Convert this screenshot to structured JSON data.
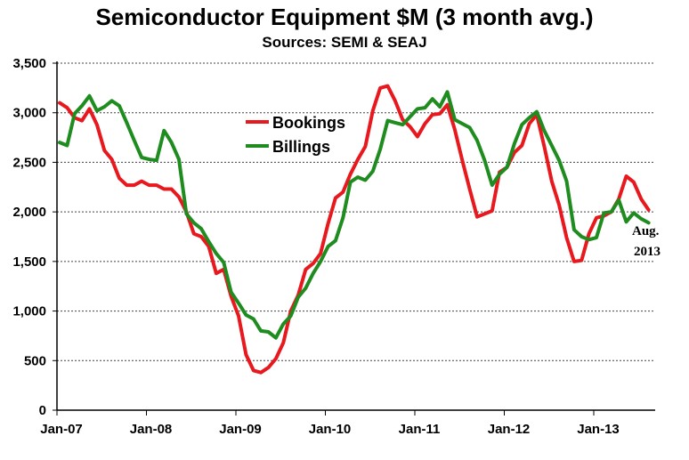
{
  "chart_data": {
    "type": "line",
    "title": "Semiconductor Equipment $M (3 month avg.)",
    "subtitle": "Sources: SEMI & SEAJ",
    "xlabel": "",
    "ylabel": "",
    "ylim": [
      0,
      3500
    ],
    "yticks": [
      0,
      500,
      1000,
      1500,
      2000,
      2500,
      3000,
      3500
    ],
    "ytick_labels": [
      "0",
      "500",
      "1,000",
      "1,500",
      "2,000",
      "2,500",
      "3,000",
      "3,500"
    ],
    "xticks": [
      "Jan-07",
      "Jan-08",
      "Jan-09",
      "Jan-10",
      "Jan-11",
      "Jan-12",
      "Jan-13"
    ],
    "x": [
      "Jan-07",
      "Feb-07",
      "Mar-07",
      "Apr-07",
      "May-07",
      "Jun-07",
      "Jul-07",
      "Aug-07",
      "Sep-07",
      "Oct-07",
      "Nov-07",
      "Dec-07",
      "Jan-08",
      "Feb-08",
      "Mar-08",
      "Apr-08",
      "May-08",
      "Jun-08",
      "Jul-08",
      "Aug-08",
      "Sep-08",
      "Oct-08",
      "Nov-08",
      "Dec-08",
      "Jan-09",
      "Feb-09",
      "Mar-09",
      "Apr-09",
      "May-09",
      "Jun-09",
      "Jul-09",
      "Aug-09",
      "Sep-09",
      "Oct-09",
      "Nov-09",
      "Dec-09",
      "Jan-10",
      "Feb-10",
      "Mar-10",
      "Apr-10",
      "May-10",
      "Jun-10",
      "Jul-10",
      "Aug-10",
      "Sep-10",
      "Oct-10",
      "Nov-10",
      "Dec-10",
      "Jan-11",
      "Feb-11",
      "Mar-11",
      "Apr-11",
      "May-11",
      "Jun-11",
      "Jul-11",
      "Aug-11",
      "Sep-11",
      "Oct-11",
      "Nov-11",
      "Dec-11",
      "Jan-12",
      "Feb-12",
      "Mar-12",
      "Apr-12",
      "May-12",
      "Jun-12",
      "Jul-12",
      "Aug-12",
      "Sep-12",
      "Oct-12",
      "Nov-12",
      "Dec-12",
      "Jan-13",
      "Feb-13",
      "Mar-13",
      "Apr-13",
      "May-13",
      "Jun-13",
      "Jul-13",
      "Aug-13"
    ],
    "series": [
      {
        "name": "Bookings",
        "color": "#e8191e",
        "values": [
          3100,
          3050,
          2950,
          2920,
          3040,
          2880,
          2620,
          2530,
          2340,
          2270,
          2270,
          2310,
          2270,
          2270,
          2230,
          2230,
          2150,
          2000,
          1780,
          1750,
          1650,
          1380,
          1420,
          1150,
          950,
          560,
          400,
          380,
          430,
          520,
          680,
          1000,
          1160,
          1420,
          1480,
          1580,
          1880,
          2140,
          2200,
          2380,
          2530,
          2660,
          3020,
          3250,
          3270,
          3120,
          2930,
          2860,
          2760,
          2890,
          2980,
          2990,
          3080,
          2830,
          2520,
          2230,
          1950,
          1980,
          2010,
          2400,
          2450,
          2600,
          2670,
          2890,
          2980,
          2660,
          2310,
          2070,
          1740,
          1500,
          1510,
          1780,
          1940,
          1960,
          2000,
          2130,
          2360,
          2300,
          2130,
          2020
        ]
      },
      {
        "name": "Billings",
        "color": "#1e8c1e",
        "values": [
          2700,
          2670,
          2990,
          3070,
          3170,
          3020,
          3060,
          3120,
          3070,
          2900,
          2720,
          2550,
          2530,
          2520,
          2820,
          2700,
          2530,
          1980,
          1890,
          1830,
          1700,
          1580,
          1490,
          1190,
          1080,
          960,
          920,
          800,
          790,
          730,
          870,
          950,
          1140,
          1230,
          1380,
          1500,
          1650,
          1710,
          1940,
          2300,
          2350,
          2320,
          2410,
          2630,
          2920,
          2900,
          2880,
          2960,
          3040,
          3050,
          3140,
          3060,
          3210,
          2930,
          2890,
          2850,
          2720,
          2520,
          2270,
          2380,
          2450,
          2690,
          2880,
          2950,
          3010,
          2820,
          2670,
          2520,
          2310,
          1820,
          1750,
          1720,
          1740,
          1990,
          2000,
          2120,
          1900,
          1990,
          1930,
          1890
        ]
      }
    ],
    "legend": {
      "entries": [
        "Bookings",
        "Billings"
      ],
      "position": "top-center"
    },
    "annotation": {
      "line1": "Aug.",
      "line2": "2013"
    },
    "grid": {
      "horizontal": true,
      "style": "dotted",
      "color": "#444444"
    }
  }
}
